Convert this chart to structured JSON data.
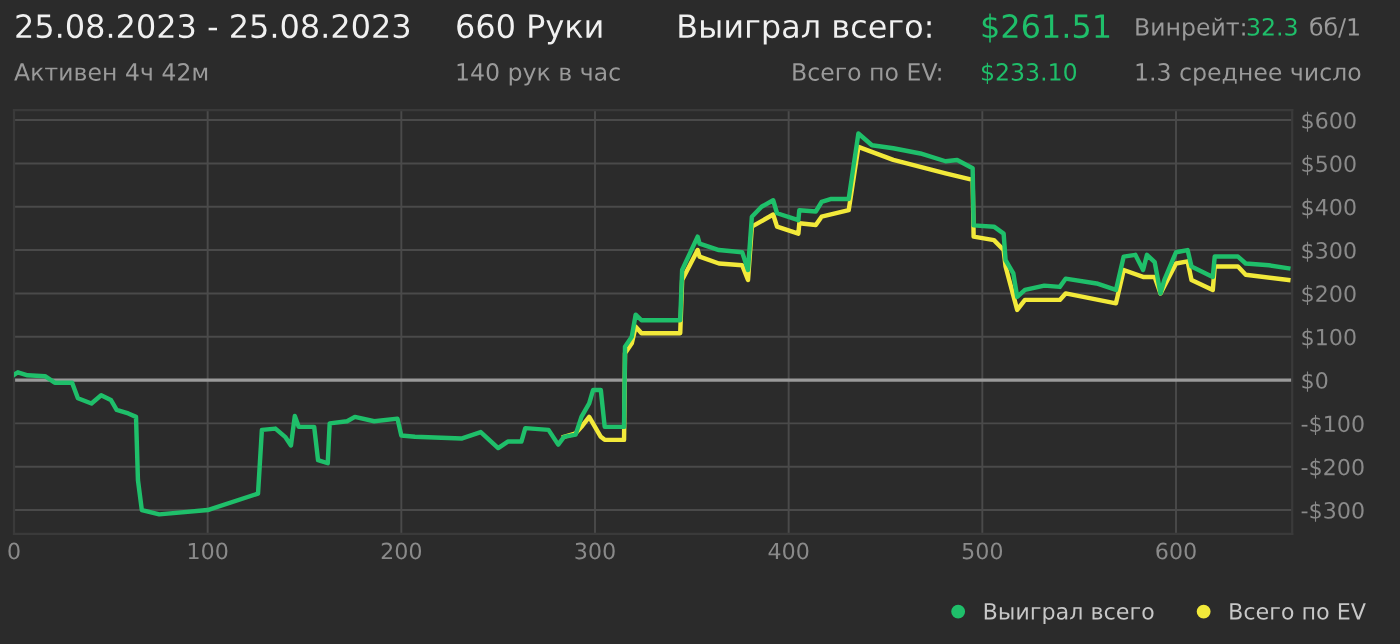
{
  "chart_data": {
    "type": "line",
    "title": "25.08.2023 - 25.08.2023",
    "annotations": [
      "Активен 4ч 42м",
      "660 Руки",
      "140 рук в час",
      "Выиграл всего:",
      "$261.51",
      "Всего по EV:",
      "$233.10",
      "Винрейт:",
      "32.3",
      "бб/1",
      "1.3 среднее число"
    ],
    "series": [
      {
        "name": "Выиграл всего",
        "color": "#1fbf6a",
        "x": [
          0,
          2,
          7,
          16,
          21,
          30,
          33,
          40,
          45,
          50,
          53,
          59,
          63,
          64,
          66,
          75,
          100,
          126,
          128,
          135,
          140,
          143,
          145,
          147,
          155,
          157,
          162,
          163,
          172,
          176,
          186,
          198,
          200,
          207,
          231,
          241,
          250,
          255,
          262,
          264,
          276,
          281,
          284,
          290,
          293,
          297,
          299,
          303,
          305,
          315,
          315.5,
          319,
          321,
          324,
          344,
          345,
          353,
          354,
          364,
          376,
          379,
          381,
          386,
          392,
          394,
          405,
          405.5,
          414,
          417,
          422,
          431,
          436,
          443,
          454,
          468,
          481,
          487,
          495,
          495.5,
          506,
          511,
          512,
          516,
          518,
          522,
          532,
          540,
          543,
          559,
          569,
          573,
          579,
          583,
          585,
          589,
          592,
          594,
          600,
          606,
          608,
          619,
          620,
          632,
          636,
          648,
          658
        ],
        "values": [
          12,
          18,
          11,
          9,
          -6,
          -6,
          -42,
          -54,
          -35,
          -46,
          -69,
          -77,
          -85,
          -231,
          -300,
          -310,
          -300,
          -262,
          -115,
          -112,
          -131,
          -151,
          -83,
          -108,
          -108,
          -185,
          -192,
          -100,
          -95,
          -85,
          -95,
          -89,
          -128,
          -131,
          -135,
          -120,
          -157,
          -142,
          -142,
          -111,
          -115,
          -149,
          -131,
          -126,
          -85,
          -54,
          -23,
          -23,
          -108,
          -108,
          77,
          100,
          151,
          138,
          138,
          254,
          331,
          315,
          300,
          295,
          254,
          377,
          400,
          415,
          385,
          369,
          392,
          389,
          411,
          418,
          418,
          569,
          542,
          535,
          523,
          505,
          508,
          489,
          357,
          354,
          338,
          277,
          246,
          192,
          208,
          218,
          215,
          234,
          223,
          208,
          285,
          289,
          254,
          289,
          272,
          200,
          231,
          295,
          300,
          262,
          238,
          285,
          285,
          269,
          265,
          258
        ]
      },
      {
        "name": "Всего по EV",
        "color": "#f2e93a",
        "x": [
          284,
          290,
          293,
          297,
          303,
          305,
          315,
          315.5,
          319,
          321,
          324,
          344,
          345,
          353,
          354,
          364,
          376,
          379,
          381,
          392,
          394,
          405,
          405.5,
          414,
          417,
          431,
          436,
          454,
          481,
          495,
          495.5,
          506,
          511,
          512,
          518,
          522,
          540,
          543,
          569,
          573,
          583,
          589,
          592,
          600,
          606,
          608,
          619,
          620,
          632,
          636,
          658
        ],
        "values": [
          -131,
          -123,
          -108,
          -85,
          -131,
          -138,
          -138,
          62,
          85,
          123,
          108,
          108,
          231,
          300,
          285,
          269,
          265,
          231,
          354,
          382,
          354,
          338,
          362,
          358,
          377,
          392,
          538,
          508,
          477,
          462,
          331,
          323,
          300,
          262,
          162,
          185,
          185,
          200,
          177,
          254,
          238,
          238,
          200,
          269,
          274,
          231,
          208,
          262,
          262,
          243,
          231
        ]
      }
    ],
    "xlim": [
      0,
      660
    ],
    "xticks": [
      0,
      100,
      200,
      300,
      400,
      500,
      600
    ],
    "ylim": [
      -355,
      623
    ],
    "yticks": [
      {
        "value": 600,
        "label": "$600"
      },
      {
        "value": 500,
        "label": "$500"
      },
      {
        "value": 400,
        "label": "$400"
      },
      {
        "value": 300,
        "label": "$300"
      },
      {
        "value": 200,
        "label": "$200"
      },
      {
        "value": 100,
        "label": "$100"
      },
      {
        "value": 0,
        "label": "$0"
      },
      {
        "value": -100,
        "label": "-$100"
      },
      {
        "value": -200,
        "label": "-$200"
      },
      {
        "value": -300,
        "label": "-$300"
      }
    ],
    "ref_lines": [
      {
        "axis": "y",
        "value": 0,
        "color": "#9a9a9a"
      }
    ],
    "grid": true,
    "legend": "bottom right",
    "marker": "none",
    "line_style": "solid"
  }
}
